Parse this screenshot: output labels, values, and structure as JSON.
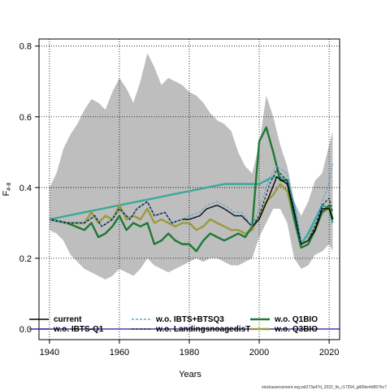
{
  "chart_data": {
    "type": "line",
    "xlabel": "Years",
    "ylabel": "F",
    "ylabel_sub": "4-8",
    "xlim": [
      1937,
      2023
    ],
    "ylim": [
      -0.03,
      0.82
    ],
    "xticks": [
      1940,
      1960,
      1980,
      2000,
      2020
    ],
    "yticks": [
      0.0,
      0.2,
      0.4,
      0.6,
      0.8
    ],
    "ytick_labels": [
      "0.0",
      "0.2",
      "0.4",
      "0.6",
      "0.8"
    ],
    "grid": true,
    "legend_position": "bottom",
    "watermark": "stockassessment.org,wit273a47d_2022_fis_r17254_gt65be4d857bc7",
    "colors": {
      "band": "#bebebe",
      "current": "#000000",
      "ibts_bts_q3": "#5aa9d6",
      "ibts_q1": "#2e2e9e",
      "landings": "#1a2a4a",
      "q1bio": "#1b7a33",
      "q3bio": "#9a9a3a",
      "alt": "#3aa89a"
    },
    "band": {
      "x": [
        1940,
        1942,
        1944,
        1946,
        1948,
        1950,
        1952,
        1954,
        1956,
        1958,
        1960,
        1962,
        1964,
        1966,
        1968,
        1970,
        1972,
        1974,
        1976,
        1978,
        1980,
        1982,
        1984,
        1986,
        1988,
        1990,
        1992,
        1994,
        1996,
        1998,
        2000,
        2002,
        2004,
        2006,
        2008,
        2010,
        2012,
        2014,
        2016,
        2018,
        2020,
        2021
      ],
      "upper": [
        0.4,
        0.44,
        0.51,
        0.55,
        0.58,
        0.62,
        0.65,
        0.64,
        0.62,
        0.67,
        0.71,
        0.68,
        0.64,
        0.7,
        0.78,
        0.74,
        0.69,
        0.71,
        0.7,
        0.69,
        0.67,
        0.66,
        0.64,
        0.61,
        0.59,
        0.58,
        0.56,
        0.5,
        0.46,
        0.44,
        0.52,
        0.66,
        0.6,
        0.52,
        0.46,
        0.36,
        0.32,
        0.36,
        0.42,
        0.44,
        0.52,
        0.56
      ],
      "lower": [
        0.28,
        0.27,
        0.25,
        0.21,
        0.19,
        0.17,
        0.16,
        0.15,
        0.14,
        0.15,
        0.17,
        0.16,
        0.15,
        0.17,
        0.2,
        0.18,
        0.17,
        0.16,
        0.17,
        0.18,
        0.19,
        0.2,
        0.19,
        0.2,
        0.2,
        0.19,
        0.18,
        0.18,
        0.19,
        0.2,
        0.26,
        0.3,
        0.34,
        0.34,
        0.3,
        0.2,
        0.17,
        0.18,
        0.21,
        0.22,
        0.24,
        0.22
      ]
    },
    "series": [
      {
        "name": "current",
        "key": "current",
        "style": "solid",
        "x": [
          1940,
          1945,
          1950,
          1953,
          1955,
          1958,
          1960,
          1963,
          1965,
          1968,
          1970,
          1973,
          1975,
          1978,
          1980,
          1983,
          1985,
          1988,
          1990,
          1993,
          1995,
          1998,
          2000,
          2003,
          2005,
          2008,
          2010,
          2012,
          2014,
          2016,
          2018,
          2020,
          2021
        ],
        "y": [
          0.31,
          0.3,
          0.3,
          0.32,
          0.29,
          0.31,
          0.34,
          0.31,
          0.34,
          0.36,
          0.32,
          0.33,
          0.3,
          0.31,
          0.31,
          0.32,
          0.34,
          0.35,
          0.34,
          0.32,
          0.32,
          0.29,
          0.31,
          0.38,
          0.43,
          0.41,
          0.33,
          0.24,
          0.25,
          0.28,
          0.34,
          0.34,
          0.31
        ]
      },
      {
        "name": "w.o. IBTS+BTSQ3",
        "key": "ibts_bts_q3",
        "style": "dashed",
        "x": [
          1940,
          1945,
          1950,
          1953,
          1955,
          1958,
          1960,
          1963,
          1965,
          1968,
          1970,
          1973,
          1975,
          1978,
          1980,
          1983,
          1985,
          1988,
          1990,
          1993,
          1995,
          1998,
          2000,
          2003,
          2005,
          2008,
          2010,
          2012,
          2014,
          2016,
          2018,
          2020,
          2021
        ],
        "y": [
          0.31,
          0.3,
          0.3,
          0.32,
          0.29,
          0.31,
          0.34,
          0.31,
          0.34,
          0.36,
          0.32,
          0.33,
          0.3,
          0.31,
          0.32,
          0.33,
          0.35,
          0.36,
          0.35,
          0.33,
          0.33,
          0.29,
          0.34,
          0.43,
          0.46,
          0.44,
          0.35,
          0.25,
          0.26,
          0.3,
          0.36,
          0.41,
          0.47
        ]
      },
      {
        "name": "w.o. Q1BIO",
        "key": "q1bio",
        "style": "thick",
        "x": [
          1940,
          1945,
          1950,
          1952,
          1954,
          1956,
          1958,
          1960,
          1962,
          1964,
          1966,
          1968,
          1970,
          1972,
          1974,
          1976,
          1978,
          1980,
          1982,
          1984,
          1986,
          1988,
          1990,
          1992,
          1994,
          1996,
          1998,
          2000,
          2002,
          2004,
          2006,
          2008,
          2010,
          2012,
          2014,
          2016,
          2018,
          2020,
          2021
        ],
        "y": [
          0.31,
          0.3,
          0.28,
          0.3,
          0.26,
          0.27,
          0.29,
          0.32,
          0.28,
          0.3,
          0.29,
          0.3,
          0.24,
          0.25,
          0.27,
          0.25,
          0.24,
          0.24,
          0.22,
          0.25,
          0.27,
          0.26,
          0.25,
          0.26,
          0.27,
          0.26,
          0.29,
          0.53,
          0.57,
          0.5,
          0.42,
          0.42,
          0.31,
          0.23,
          0.24,
          0.28,
          0.33,
          0.35,
          0.31
        ]
      },
      {
        "name": "w.o. IBTS-Q1",
        "key": "ibts_q1",
        "style": "solid",
        "x": [
          1937,
          2023
        ],
        "y": [
          0.0,
          0.0
        ]
      },
      {
        "name": "w.o. LandingsnoagedisT",
        "key": "landings",
        "style": "dashed",
        "x": [
          1940,
          1945,
          1950,
          1953,
          1955,
          1958,
          1960,
          1963,
          1965,
          1968,
          1970,
          1973,
          1975,
          1978,
          1980,
          1983,
          1985,
          1988,
          1990,
          1993,
          1995,
          1998,
          2000,
          2003,
          2005,
          2008,
          2010,
          2012,
          2014,
          2016,
          2018,
          2020,
          2021
        ],
        "y": [
          0.31,
          0.3,
          0.3,
          0.32,
          0.29,
          0.31,
          0.34,
          0.31,
          0.34,
          0.36,
          0.32,
          0.33,
          0.3,
          0.31,
          0.31,
          0.32,
          0.34,
          0.35,
          0.34,
          0.32,
          0.32,
          0.29,
          0.32,
          0.41,
          0.45,
          0.42,
          0.34,
          0.24,
          0.25,
          0.29,
          0.35,
          0.37,
          0.33
        ]
      },
      {
        "name": "w.o. Q3BIO",
        "key": "q3bio",
        "style": "thick",
        "x": [
          1940,
          1945,
          1950,
          1952,
          1954,
          1956,
          1958,
          1960,
          1962,
          1964,
          1966,
          1968,
          1970,
          1972,
          1974,
          1976,
          1978,
          1980,
          1982,
          1984,
          1986,
          1988,
          1990,
          1992,
          1994,
          1996,
          1998,
          2000,
          2002,
          2004,
          2006,
          2008,
          2010,
          2012,
          2014,
          2016,
          2018,
          2020,
          2021
        ],
        "y": [
          0.31,
          0.3,
          0.3,
          0.33,
          0.3,
          0.32,
          0.31,
          0.35,
          0.31,
          0.32,
          0.31,
          0.34,
          0.3,
          0.31,
          0.3,
          0.29,
          0.3,
          0.3,
          0.28,
          0.29,
          0.31,
          0.3,
          0.29,
          0.28,
          0.28,
          0.27,
          0.28,
          0.32,
          0.36,
          0.38,
          0.41,
          0.39,
          0.31,
          0.24,
          0.25,
          0.29,
          0.33,
          0.34,
          0.31
        ]
      },
      {
        "name": "",
        "key": "alt",
        "style": "thick",
        "x": [
          1940,
          1950,
          1960,
          1970,
          1975,
          1980,
          1985,
          1990,
          1995,
          2000,
          2002,
          2004,
          2006,
          2008,
          2010,
          2012,
          2014,
          2016,
          2018,
          2020,
          2021
        ],
        "y": [
          0.31,
          0.33,
          0.35,
          0.37,
          0.38,
          0.39,
          0.4,
          0.41,
          0.41,
          0.41,
          0.42,
          0.43,
          0.43,
          0.42,
          0.35,
          0.24,
          0.27,
          0.31,
          0.35,
          0.34,
          0.3
        ]
      }
    ],
    "legend": [
      {
        "label": "current",
        "key": "current",
        "style": "solid",
        "col": 0,
        "row": 0
      },
      {
        "label": "w.o. IBTS-Q1",
        "key": "ibts_q1",
        "style": "solid",
        "col": 0,
        "row": 1
      },
      {
        "label": "w.o. IBTS+BTSQ3",
        "key": "ibts_bts_q3",
        "style": "dashed",
        "col": 1,
        "row": 0
      },
      {
        "label": "w.o. LandingsnoagedisT",
        "key": "landings",
        "style": "dashed",
        "col": 1,
        "row": 1
      },
      {
        "label": "w.o. Q1BIO",
        "key": "q1bio",
        "style": "thick",
        "col": 2,
        "row": 0
      },
      {
        "label": "w.o. Q3BIO",
        "key": "q3bio",
        "style": "thick",
        "col": 2,
        "row": 1
      }
    ]
  }
}
